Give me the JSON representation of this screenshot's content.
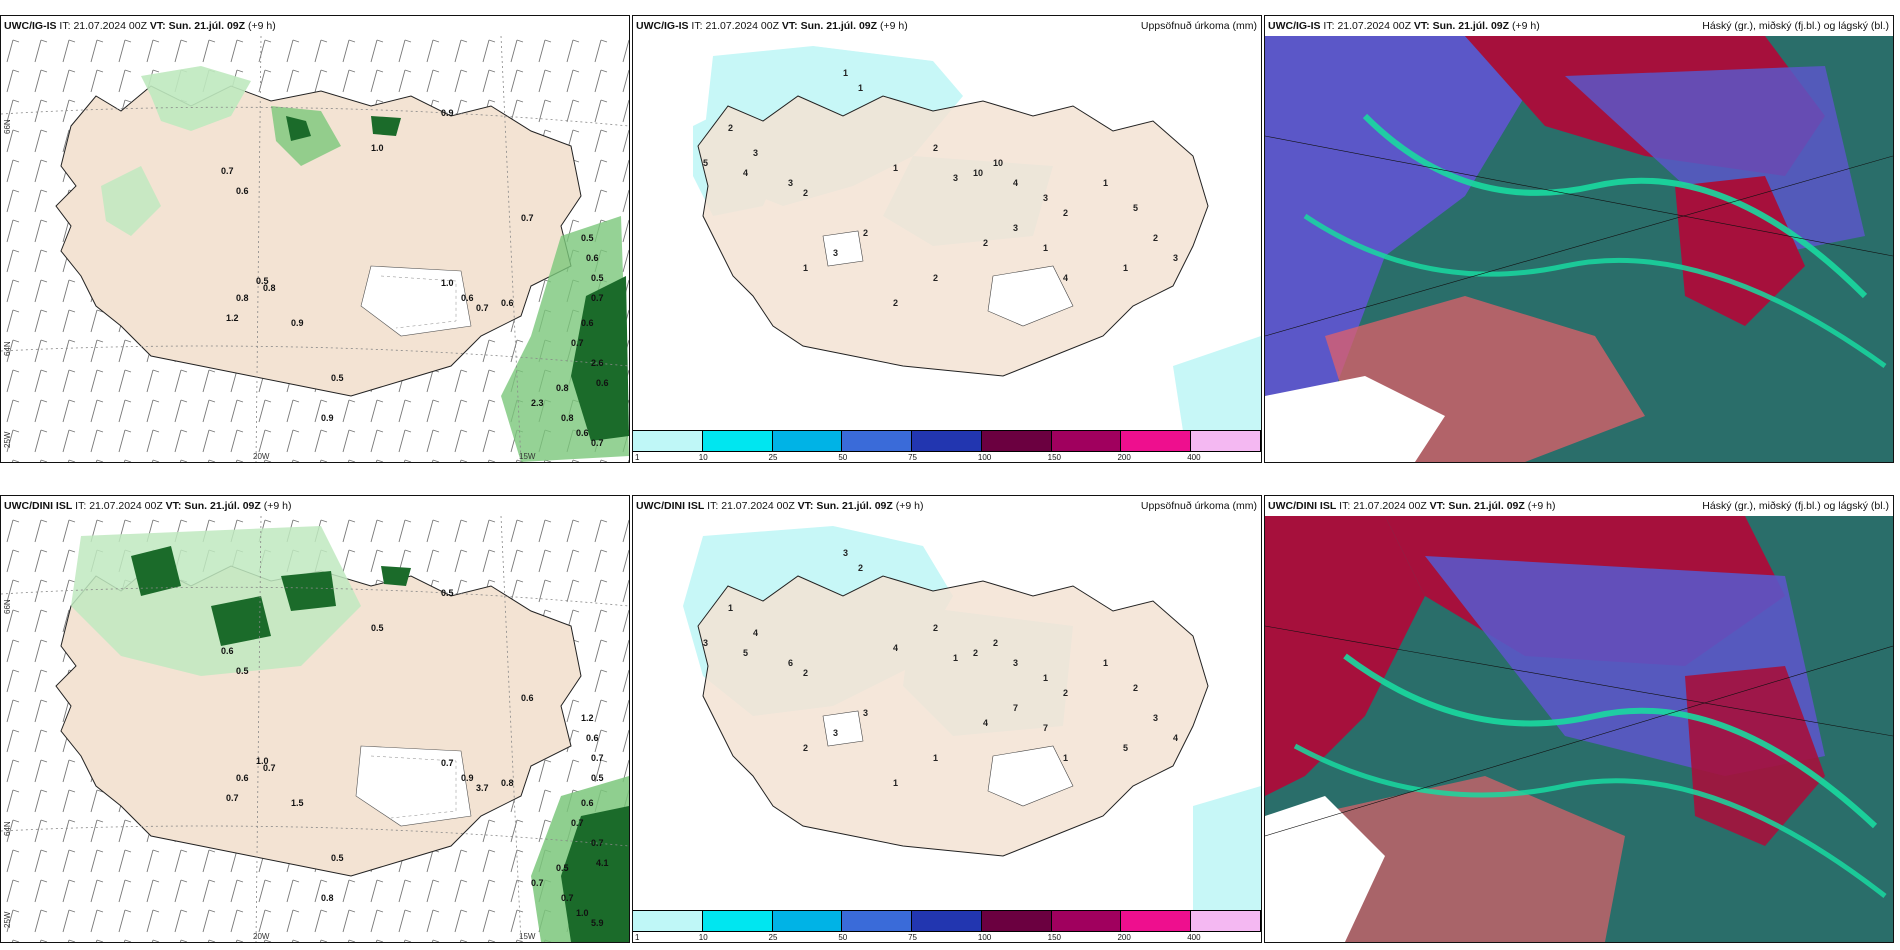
{
  "rows": [
    {
      "model": "UWC/IG-IS",
      "it_label": "IT:",
      "it_value": "21.07.2024 00Z",
      "vt_label": "VT:",
      "vt_value": "Sun. 21.júl. 09Z",
      "lead": "(+9 h)",
      "wind_values": [
        "0.9",
        "1.0",
        "0.7",
        "0.6",
        "0.8",
        "0.5",
        "0.8",
        "1.2",
        "0.9",
        "0.5",
        "0.9",
        "1.0",
        "0.7",
        "0.5",
        "0.6",
        "0.5",
        "0.7",
        "0.6",
        "0.7",
        "2.6",
        "0.8",
        "2.3",
        "0.8",
        "0.6",
        "0.7",
        "0.6",
        "1.0",
        "0.6",
        "0.7",
        "0.6"
      ],
      "precip_values": [
        "1",
        "1",
        "2",
        "3",
        "5",
        "4",
        "3",
        "2",
        "1",
        "2",
        "3",
        "10",
        "10",
        "4",
        "3",
        "2",
        "1",
        "5",
        "2",
        "3",
        "1",
        "4",
        "2",
        "2",
        "1",
        "3",
        "2",
        "2",
        "3",
        "1"
      ]
    },
    {
      "model": "UWC/DINI ISL",
      "it_label": "IT:",
      "it_value": "21.07.2024 00Z",
      "vt_label": "VT:",
      "vt_value": "Sun. 21.júl. 09Z",
      "lead": "(+9 h)",
      "wind_values": [
        "0.5",
        "0.5",
        "0.6",
        "0.5",
        "0.7",
        "1.0",
        "0.6",
        "0.7",
        "1.5",
        "0.5",
        "0.8",
        "0.5",
        "0.6",
        "1.2",
        "0.6",
        "0.7",
        "0.5",
        "0.6",
        "0.7",
        "0.7",
        "0.5",
        "0.7",
        "0.7",
        "1.0",
        "5.9",
        "4.1",
        "0.7",
        "0.9",
        "3.7",
        "0.8"
      ],
      "precip_values": [
        "3",
        "2",
        "1",
        "4",
        "3",
        "5",
        "6",
        "2",
        "4",
        "2",
        "1",
        "2",
        "2",
        "3",
        "1",
        "2",
        "1",
        "2",
        "3",
        "4",
        "5",
        "1",
        "1",
        "1",
        "2",
        "3",
        "3",
        "4",
        "7",
        "7"
      ]
    }
  ],
  "precip_title": "Uppsöfnuð úrkoma (mm)",
  "cloud_title": "Háský (gr.), miðský (fj.bl.) og lágský (bl.)",
  "axis_labels": {
    "lat_66": "66N",
    "lat_64": "64N",
    "lat_25w": "25W",
    "lon_20w": "20W",
    "lon_15w": "15W",
    "lat_66_right": "66N"
  },
  "colorbar": {
    "ticks": [
      "1",
      "10",
      "25",
      "50",
      "75",
      "100",
      "150",
      "200",
      "400"
    ],
    "colors": [
      "#bff7f7",
      "#00e6f0",
      "#00b3e6",
      "#3a6bd9",
      "#2236b0",
      "#6b0040",
      "#a0005e",
      "#ee0f8e",
      "#f4b8f2"
    ]
  },
  "colors": {
    "land": "#f3e3d3",
    "precip_light": "#c7f7f7",
    "precip_green_light": "#bfe9bf",
    "precip_green_mid": "#7bc77b",
    "precip_green_dark": "#1b6b2a",
    "cloud_high": "#a6103c",
    "cloud_mid": "#5b57c8",
    "cloud_low": "#2a6e6a"
  }
}
